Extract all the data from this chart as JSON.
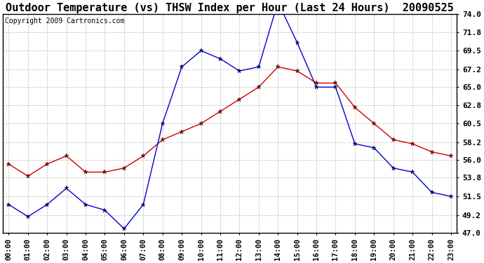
{
  "title": "Outdoor Temperature (vs) THSW Index per Hour (Last 24 Hours)  20090525",
  "copyright": "Copyright 2009 Cartronics.com",
  "hours": [
    "00:00",
    "01:00",
    "02:00",
    "03:00",
    "04:00",
    "05:00",
    "06:00",
    "07:00",
    "08:00",
    "09:00",
    "10:00",
    "11:00",
    "12:00",
    "13:00",
    "14:00",
    "15:00",
    "16:00",
    "17:00",
    "18:00",
    "19:00",
    "20:00",
    "21:00",
    "22:00",
    "23:00"
  ],
  "temp": [
    55.5,
    54.0,
    55.5,
    56.5,
    54.5,
    54.5,
    55.0,
    56.5,
    58.5,
    59.5,
    60.5,
    62.0,
    63.5,
    65.0,
    67.5,
    67.0,
    65.5,
    65.5,
    62.5,
    60.5,
    58.5,
    58.0,
    57.0,
    56.5
  ],
  "thsw": [
    50.5,
    49.0,
    50.5,
    52.5,
    50.5,
    49.8,
    47.5,
    50.5,
    60.5,
    67.5,
    69.5,
    68.5,
    67.0,
    67.5,
    75.5,
    70.5,
    65.0,
    65.0,
    58.0,
    57.5,
    55.0,
    54.5,
    52.0,
    51.5
  ],
  "ylim": [
    47.0,
    74.0
  ],
  "yticks": [
    47.0,
    49.2,
    51.5,
    53.8,
    56.0,
    58.2,
    60.5,
    62.8,
    65.0,
    67.2,
    69.5,
    71.8,
    74.0
  ],
  "temp_color": "#cc0000",
  "thsw_color": "#0000cc",
  "bg_color": "#ffffff",
  "grid_color": "#aaaaaa",
  "title_fontsize": 11,
  "copyright_fontsize": 7,
  "tick_fontsize": 7.5
}
